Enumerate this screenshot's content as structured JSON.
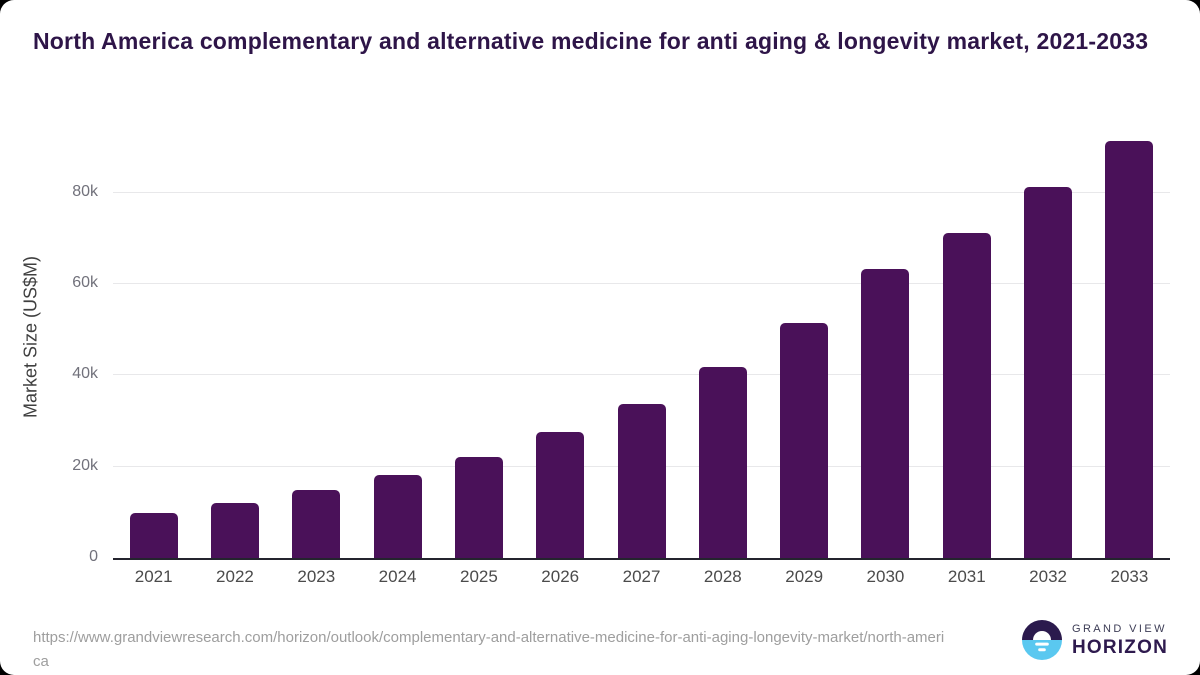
{
  "title": "North America complementary and alternative medicine for anti aging & longevity market, 2021-2033",
  "chart_data": {
    "type": "bar",
    "categories": [
      "2021",
      "2022",
      "2023",
      "2024",
      "2025",
      "2026",
      "2027",
      "2028",
      "2029",
      "2030",
      "2031",
      "2032",
      "2033"
    ],
    "values": [
      9900,
      12000,
      14800,
      18100,
      22100,
      27500,
      33800,
      41900,
      51500,
      63300,
      71200,
      81300,
      91400
    ],
    "title": "North America complementary and alternative medicine for anti aging & longevity market, 2021-2033",
    "xlabel": "",
    "ylabel": "Market Size (US$M)",
    "ylim": [
      0,
      93750
    ],
    "yticks": [
      {
        "value": 0,
        "label": "0"
      },
      {
        "value": 20000,
        "label": "20k"
      },
      {
        "value": 40000,
        "label": "40k"
      },
      {
        "value": 60000,
        "label": "60k"
      },
      {
        "value": 80000,
        "label": "80k"
      }
    ],
    "grid": true,
    "legend": false,
    "bar_color": "#4a1159"
  },
  "colors": {
    "bar": "#4a1159",
    "title_text": "#2e1548",
    "axis_label_text": "#3f3f3f",
    "tick_text": "#71717b",
    "gridline": "#e8e8ea",
    "baseline": "#24242e",
    "url_text": "#9e9e9e",
    "logo_dark": "#2b1a4d",
    "logo_cyan": "#5ac8f0"
  },
  "footer": {
    "source_url": "https://www.grandviewresearch.com/horizon/outlook/complementary-and-alternative-medicine-for-anti-aging-longevity-market/north-america",
    "logo": {
      "top_text": "GRAND VIEW",
      "bottom_text": "HORIZON"
    }
  }
}
